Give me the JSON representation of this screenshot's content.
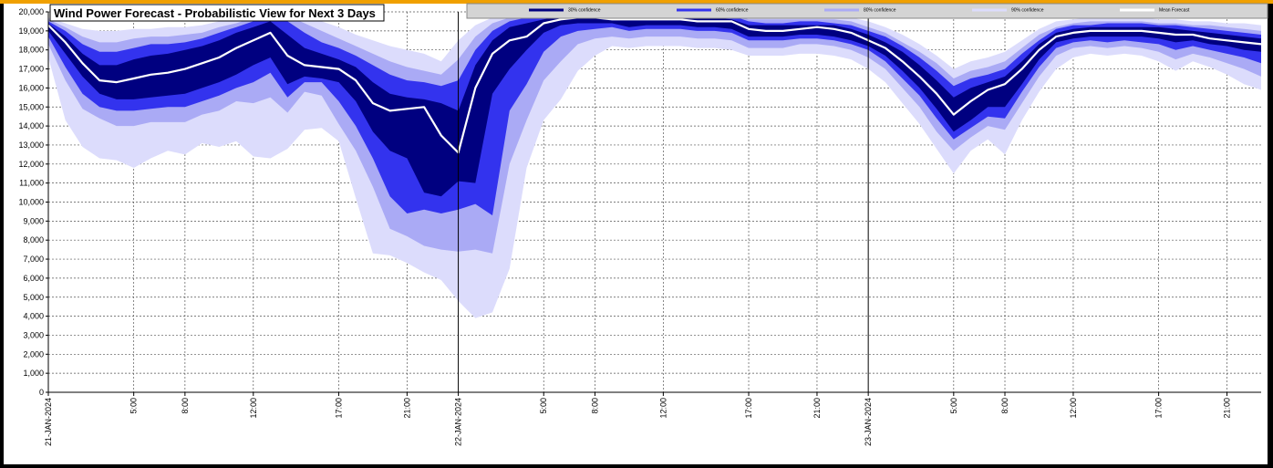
{
  "chart_data": {
    "type": "area",
    "title": "Wind Power Forecast - Probabilistic View for Next 3 Days",
    "ylim": [
      0,
      20000
    ],
    "yticks": [
      0,
      1000,
      2000,
      3000,
      4000,
      5000,
      6000,
      7000,
      8000,
      9000,
      10000,
      11000,
      12000,
      13000,
      14000,
      15000,
      16000,
      17000,
      18000,
      19000,
      20000
    ],
    "ytick_labels": [
      "0",
      "1,000",
      "2,000",
      "3,000",
      "4,000",
      "5,000",
      "6,000",
      "7,000",
      "8,000",
      "9,000",
      "10,000",
      "11,000",
      "12,000",
      "13,000",
      "14,000",
      "15,000",
      "16,000",
      "17,000",
      "18,000",
      "19,000",
      "20,000"
    ],
    "x_range": [
      0,
      71
    ],
    "xticks": [
      {
        "x": 0,
        "label": "21-JAN-2024",
        "major": true
      },
      {
        "x": 5,
        "label": "5:00",
        "major": false
      },
      {
        "x": 8,
        "label": "8:00",
        "major": false
      },
      {
        "x": 12,
        "label": "12:00",
        "major": false
      },
      {
        "x": 17,
        "label": "17:00",
        "major": false
      },
      {
        "x": 21,
        "label": "21:00",
        "major": false
      },
      {
        "x": 24,
        "label": "22-JAN-2024",
        "major": true
      },
      {
        "x": 29,
        "label": "5:00",
        "major": false
      },
      {
        "x": 32,
        "label": "8:00",
        "major": false
      },
      {
        "x": 36,
        "label": "12:00",
        "major": false
      },
      {
        "x": 41,
        "label": "17:00",
        "major": false
      },
      {
        "x": 45,
        "label": "21:00",
        "major": false
      },
      {
        "x": 48,
        "label": "23-JAN-2024",
        "major": true
      },
      {
        "x": 53,
        "label": "5:00",
        "major": false
      },
      {
        "x": 56,
        "label": "8:00",
        "major": false
      },
      {
        "x": 60,
        "label": "12:00",
        "major": false
      },
      {
        "x": 65,
        "label": "17:00",
        "major": false
      },
      {
        "x": 69,
        "label": "21:00",
        "major": false
      }
    ],
    "grid": true,
    "legend_position": "top-right",
    "legend": [
      {
        "name": "30% confidence",
        "color": "#000080"
      },
      {
        "name": "60% confidence",
        "color": "#3333ee"
      },
      {
        "name": "80% confidence",
        "color": "#aaaaf5"
      },
      {
        "name": "90% confidence",
        "color": "#dcdcfc"
      },
      {
        "name": "Mean Forecast",
        "color": "#ffffff"
      }
    ],
    "x": [
      0,
      1,
      2,
      3,
      4,
      5,
      6,
      7,
      8,
      9,
      10,
      11,
      12,
      13,
      14,
      15,
      16,
      17,
      18,
      19,
      20,
      21,
      22,
      23,
      24,
      25,
      26,
      27,
      28,
      29,
      30,
      31,
      32,
      33,
      34,
      35,
      36,
      37,
      38,
      39,
      40,
      41,
      42,
      43,
      44,
      45,
      46,
      47,
      48,
      49,
      50,
      51,
      52,
      53,
      54,
      55,
      56,
      57,
      58,
      59,
      60,
      61,
      62,
      63,
      64,
      65,
      66,
      67,
      68,
      69,
      70,
      71
    ],
    "mean": [
      19300,
      18400,
      17300,
      16400,
      16300,
      16500,
      16700,
      16800,
      17000,
      17300,
      17600,
      18100,
      18500,
      18900,
      17700,
      17200,
      17100,
      17000,
      16400,
      15200,
      14800,
      14900,
      15000,
      13500,
      12600,
      16000,
      17800,
      18500,
      18700,
      19400,
      19600,
      19700,
      19700,
      19600,
      19600,
      19600,
      19600,
      19600,
      19500,
      19500,
      19500,
      19100,
      19000,
      19000,
      19100,
      19200,
      19100,
      18900,
      18500,
      18100,
      17400,
      16600,
      15700,
      14600,
      15300,
      15900,
      16200,
      17000,
      18000,
      18700,
      18900,
      19000,
      19000,
      19000,
      19000,
      18900,
      18800,
      18800,
      18600,
      18500,
      18400,
      18300
    ],
    "band30": {
      "upper": [
        19400,
        18700,
        17800,
        17200,
        17200,
        17500,
        17700,
        17800,
        18000,
        18200,
        18500,
        18900,
        19200,
        19500,
        18800,
        18100,
        17800,
        17500,
        17100,
        16300,
        15700,
        15500,
        15400,
        15200,
        14800,
        17200,
        18500,
        19200,
        19400,
        19600,
        19800,
        19800,
        19800,
        19700,
        19700,
        19700,
        19700,
        19700,
        19700,
        19700,
        19600,
        19300,
        19300,
        19300,
        19300,
        19300,
        19300,
        19100,
        18800,
        18400,
        17900,
        17200,
        16400,
        15500,
        16000,
        16300,
        16600,
        17400,
        18300,
        18900,
        19100,
        19200,
        19200,
        19200,
        19200,
        19200,
        19100,
        19000,
        18900,
        18800,
        18700,
        18600
      ],
      "lower": [
        19000,
        17800,
        16600,
        15700,
        15400,
        15400,
        15500,
        15600,
        15700,
        16000,
        16300,
        16700,
        17200,
        17600,
        16200,
        16600,
        16500,
        16300,
        15300,
        13700,
        12700,
        12300,
        10500,
        10300,
        11100,
        11000,
        15700,
        17000,
        18000,
        18900,
        19300,
        19400,
        19400,
        19400,
        19200,
        19300,
        19300,
        19300,
        19200,
        19200,
        19100,
        18700,
        18700,
        18700,
        18800,
        18800,
        18700,
        18500,
        18200,
        17700,
        16900,
        16000,
        14900,
        13700,
        14300,
        15000,
        15000,
        16200,
        17500,
        18400,
        18600,
        18700,
        18700,
        18700,
        18700,
        18600,
        18400,
        18500,
        18300,
        18200,
        18000,
        17900
      ]
    },
    "band60": {
      "upper": [
        19500,
        19000,
        18300,
        17900,
        17900,
        18100,
        18300,
        18300,
        18400,
        18600,
        18900,
        19200,
        19500,
        19700,
        19500,
        18900,
        18400,
        18100,
        17700,
        17200,
        16700,
        16400,
        16300,
        16100,
        16400,
        18000,
        19000,
        19500,
        19700,
        19800,
        19900,
        19900,
        19900,
        19900,
        19800,
        19800,
        19800,
        19800,
        19800,
        19800,
        19800,
        19500,
        19400,
        19400,
        19500,
        19500,
        19400,
        19300,
        19000,
        18700,
        18200,
        17600,
        16900,
        16100,
        16500,
        16700,
        17000,
        17800,
        18500,
        19100,
        19300,
        19300,
        19400,
        19400,
        19400,
        19300,
        19300,
        19200,
        19100,
        19000,
        18900,
        18800
      ],
      "lower": [
        18700,
        17100,
        15700,
        15000,
        14800,
        14800,
        14900,
        15000,
        15000,
        15300,
        15600,
        16000,
        16300,
        16800,
        15500,
        16300,
        16300,
        15300,
        14000,
        12300,
        10300,
        9400,
        9600,
        9400,
        9600,
        9900,
        9300,
        14800,
        16200,
        17900,
        18700,
        19000,
        19100,
        19200,
        19000,
        19100,
        19100,
        19100,
        19000,
        19000,
        18900,
        18500,
        18500,
        18500,
        18600,
        18600,
        18500,
        18300,
        18000,
        17400,
        16500,
        15600,
        14400,
        13300,
        13900,
        14500,
        14400,
        15800,
        17100,
        18100,
        18400,
        18500,
        18400,
        18500,
        18400,
        18300,
        18000,
        18200,
        18000,
        17800,
        17600,
        17300
      ]
    },
    "band80": {
      "upper": [
        19600,
        19200,
        18700,
        18400,
        18400,
        18600,
        18700,
        18700,
        18800,
        18900,
        19200,
        19400,
        19700,
        19900,
        19800,
        19400,
        19000,
        18600,
        18200,
        17800,
        17400,
        17100,
        16900,
        16700,
        17500,
        18700,
        19400,
        19700,
        19800,
        19900,
        19900,
        19900,
        19900,
        19900,
        19900,
        19900,
        19900,
        19900,
        19900,
        19900,
        19900,
        19600,
        19600,
        19600,
        19600,
        19600,
        19600,
        19500,
        19200,
        18900,
        18400,
        17900,
        17300,
        16500,
        16900,
        17100,
        17400,
        18100,
        18800,
        19200,
        19400,
        19500,
        19500,
        19500,
        19500,
        19400,
        19400,
        19300,
        19300,
        19200,
        19100,
        19000
      ],
      "lower": [
        18300,
        16400,
        14900,
        14400,
        14000,
        14000,
        14200,
        14200,
        14200,
        14600,
        14800,
        15300,
        15200,
        15500,
        14700,
        15800,
        15600,
        14100,
        12700,
        10800,
        8600,
        8200,
        7700,
        7500,
        7400,
        7500,
        7300,
        12000,
        14300,
        16400,
        17400,
        18300,
        18600,
        18700,
        18600,
        18700,
        18700,
        18700,
        18600,
        18600,
        18500,
        18100,
        18100,
        18100,
        18300,
        18300,
        18200,
        18000,
        17600,
        17000,
        16000,
        15000,
        13700,
        12700,
        13400,
        14000,
        13800,
        15200,
        16600,
        17700,
        18100,
        18200,
        18100,
        18200,
        18100,
        17900,
        17500,
        17800,
        17600,
        17300,
        17000,
        16600
      ]
    },
    "band90": {
      "upper": [
        19700,
        19400,
        19100,
        19000,
        19000,
        19100,
        19100,
        19200,
        19200,
        19300,
        19500,
        19600,
        19800,
        19900,
        19900,
        19800,
        19500,
        19200,
        18800,
        18500,
        18200,
        18000,
        17800,
        17400,
        18500,
        19300,
        19700,
        19900,
        19900,
        19950,
        19950,
        19950,
        19950,
        19950,
        19950,
        19950,
        19950,
        19950,
        19950,
        19950,
        19950,
        19800,
        19800,
        19800,
        19800,
        19800,
        19800,
        19700,
        19500,
        19200,
        18800,
        18300,
        17700,
        17000,
        17400,
        17600,
        17900,
        18500,
        19100,
        19500,
        19600,
        19700,
        19700,
        19700,
        19700,
        19600,
        19600,
        19500,
        19500,
        19400,
        19400,
        19300
      ],
      "lower": [
        17600,
        14300,
        12900,
        12300,
        12200,
        11800,
        12300,
        12700,
        12500,
        13100,
        12900,
        13200,
        12400,
        12300,
        12800,
        13800,
        13900,
        13200,
        10200,
        7300,
        7200,
        6800,
        6300,
        5900,
        4800,
        3900,
        4200,
        6500,
        11800,
        14300,
        15400,
        16900,
        17700,
        18200,
        18100,
        18200,
        18200,
        18200,
        18100,
        18100,
        18000,
        17700,
        17700,
        17700,
        17800,
        17800,
        17700,
        17500,
        17000,
        16300,
        15200,
        14100,
        12800,
        11500,
        12700,
        13300,
        12500,
        14300,
        15800,
        17000,
        17600,
        17800,
        17700,
        17800,
        17700,
        17400,
        16900,
        17400,
        17100,
        16700,
        16200,
        15900
      ]
    }
  }
}
